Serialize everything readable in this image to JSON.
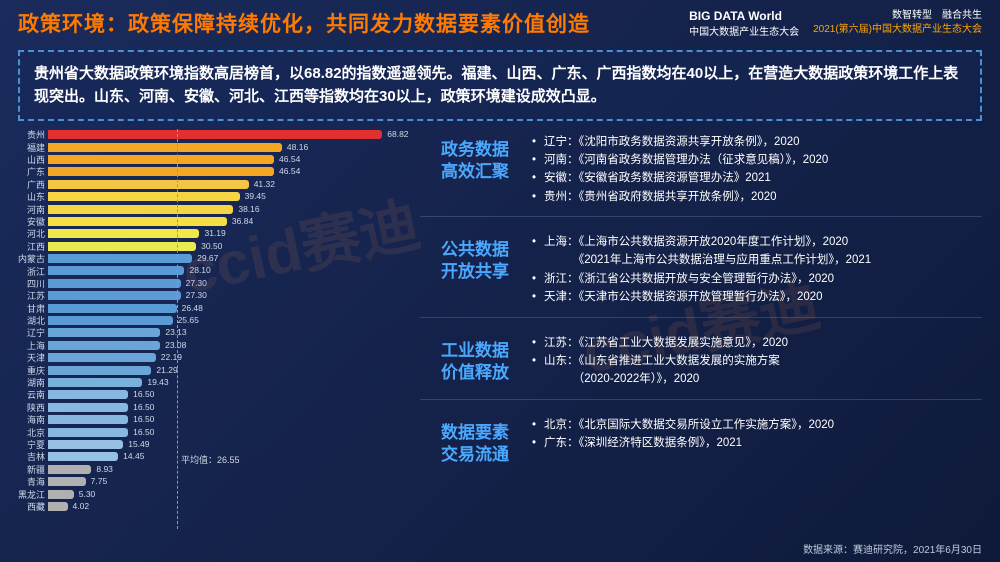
{
  "header": {
    "title": "政策环境：政策保障持续优化，共同发力数据要素价值创造",
    "logo_big": "BIG DATA World",
    "logo_small": "中国大数据产业生态大会",
    "sub_line1": "数智转型　融合共生",
    "sub_line2": "2021(第六届)中国大数据产业生态大会"
  },
  "summary": "贵州省大数据政策环境指数高居榜首，以68.82的指数遥遥领先。福建、山西、广东、广西指数均在40以上，在营造大数据政策环境工作上表现突出。山东、河南、安徽、河北、江西等指数均在30以上，政策环境建设成效凸显。",
  "chart": {
    "type": "bar-horizontal",
    "xlim": [
      0,
      70
    ],
    "label_fontsize": 9,
    "value_fontsize": 8.5,
    "average": 26.55,
    "avg_label": "平均值：26.55",
    "bars": [
      {
        "label": "贵州",
        "value": 68.82,
        "color": "#e03030"
      },
      {
        "label": "福建",
        "value": 48.16,
        "color": "#f5a623"
      },
      {
        "label": "山西",
        "value": 46.54,
        "color": "#f5a623"
      },
      {
        "label": "广东",
        "value": 46.54,
        "color": "#f5a623"
      },
      {
        "label": "广西",
        "value": 41.32,
        "color": "#f5c643"
      },
      {
        "label": "山东",
        "value": 39.45,
        "color": "#f5d543"
      },
      {
        "label": "河南",
        "value": 38.16,
        "color": "#f5d543"
      },
      {
        "label": "安徽",
        "value": 36.84,
        "color": "#f5e043"
      },
      {
        "label": "河北",
        "value": 31.19,
        "color": "#f0e84a"
      },
      {
        "label": "江西",
        "value": 30.5,
        "color": "#e8ea50"
      },
      {
        "label": "内蒙古",
        "value": 29.67,
        "color": "#5a9bd5"
      },
      {
        "label": "浙江",
        "value": 28.1,
        "color": "#5a9bd5"
      },
      {
        "label": "四川",
        "value": 27.3,
        "color": "#5a9bd5"
      },
      {
        "label": "江苏",
        "value": 27.3,
        "color": "#5a9bd5"
      },
      {
        "label": "甘肃",
        "value": 26.48,
        "color": "#5a9bd5"
      },
      {
        "label": "湖北",
        "value": 25.65,
        "color": "#5a9bd5"
      },
      {
        "label": "辽宁",
        "value": 23.13,
        "color": "#6aa5d8"
      },
      {
        "label": "上海",
        "value": 23.08,
        "color": "#6aa5d8"
      },
      {
        "label": "天津",
        "value": 22.19,
        "color": "#6aa5d8"
      },
      {
        "label": "重庆",
        "value": 21.29,
        "color": "#6aa5d8"
      },
      {
        "label": "湖南",
        "value": 19.43,
        "color": "#7ab0dc"
      },
      {
        "label": "云南",
        "value": 16.5,
        "color": "#88b8e0"
      },
      {
        "label": "陕西",
        "value": 16.5,
        "color": "#88b8e0"
      },
      {
        "label": "海南",
        "value": 16.5,
        "color": "#88b8e0"
      },
      {
        "label": "北京",
        "value": 16.5,
        "color": "#88b8e0"
      },
      {
        "label": "宁夏",
        "value": 15.49,
        "color": "#96c0e4"
      },
      {
        "label": "吉林",
        "value": 14.45,
        "color": "#96c0e4"
      },
      {
        "label": "新疆",
        "value": 8.93,
        "color": "#b0b0b0"
      },
      {
        "label": "青海",
        "value": 7.75,
        "color": "#b0b0b0"
      },
      {
        "label": "黑龙江",
        "value": 5.3,
        "color": "#b0b0b0"
      },
      {
        "label": "西藏",
        "value": 4.02,
        "color": "#b0b0b0"
      }
    ]
  },
  "sections": [
    {
      "heading": "政务数据\n高效汇聚",
      "items": [
        "辽宁：《沈阳市政务数据资源共享开放条例》，2020",
        "河南：《河南省政务数据管理办法（征求意见稿）》，2020",
        "安徽：《安徽省政务数据资源管理办法》2021",
        "贵州：《贵州省政府数据共享开放条例》，2020"
      ]
    },
    {
      "heading": "公共数据\n开放共享",
      "items": [
        "上海：《上海市公共数据资源开放2020年度工作计划》，2020\n　　　《2021年上海市公共数据治理与应用重点工作计划》，2021",
        "浙江：《浙江省公共数据开放与安全管理暂行办法》，2020",
        "天津：《天津市公共数据资源开放管理暂行办法》，2020"
      ]
    },
    {
      "heading": "工业数据\n价值释放",
      "items": [
        "江苏：《江苏省工业大数据发展实施意见》，2020",
        "山东：《山东省推进工业大数据发展的实施方案\n　　　（2020-2022年）》，2020"
      ]
    },
    {
      "heading": "数据要素\n交易流通",
      "items": [
        "北京：《北京国际大数据交易所设立工作实施方案》，2020",
        "广东：《深圳经济特区数据条例》，2021"
      ]
    }
  ],
  "footer": "数据来源：赛迪研究院，2021年6月30日",
  "watermark": "ccid赛迪"
}
